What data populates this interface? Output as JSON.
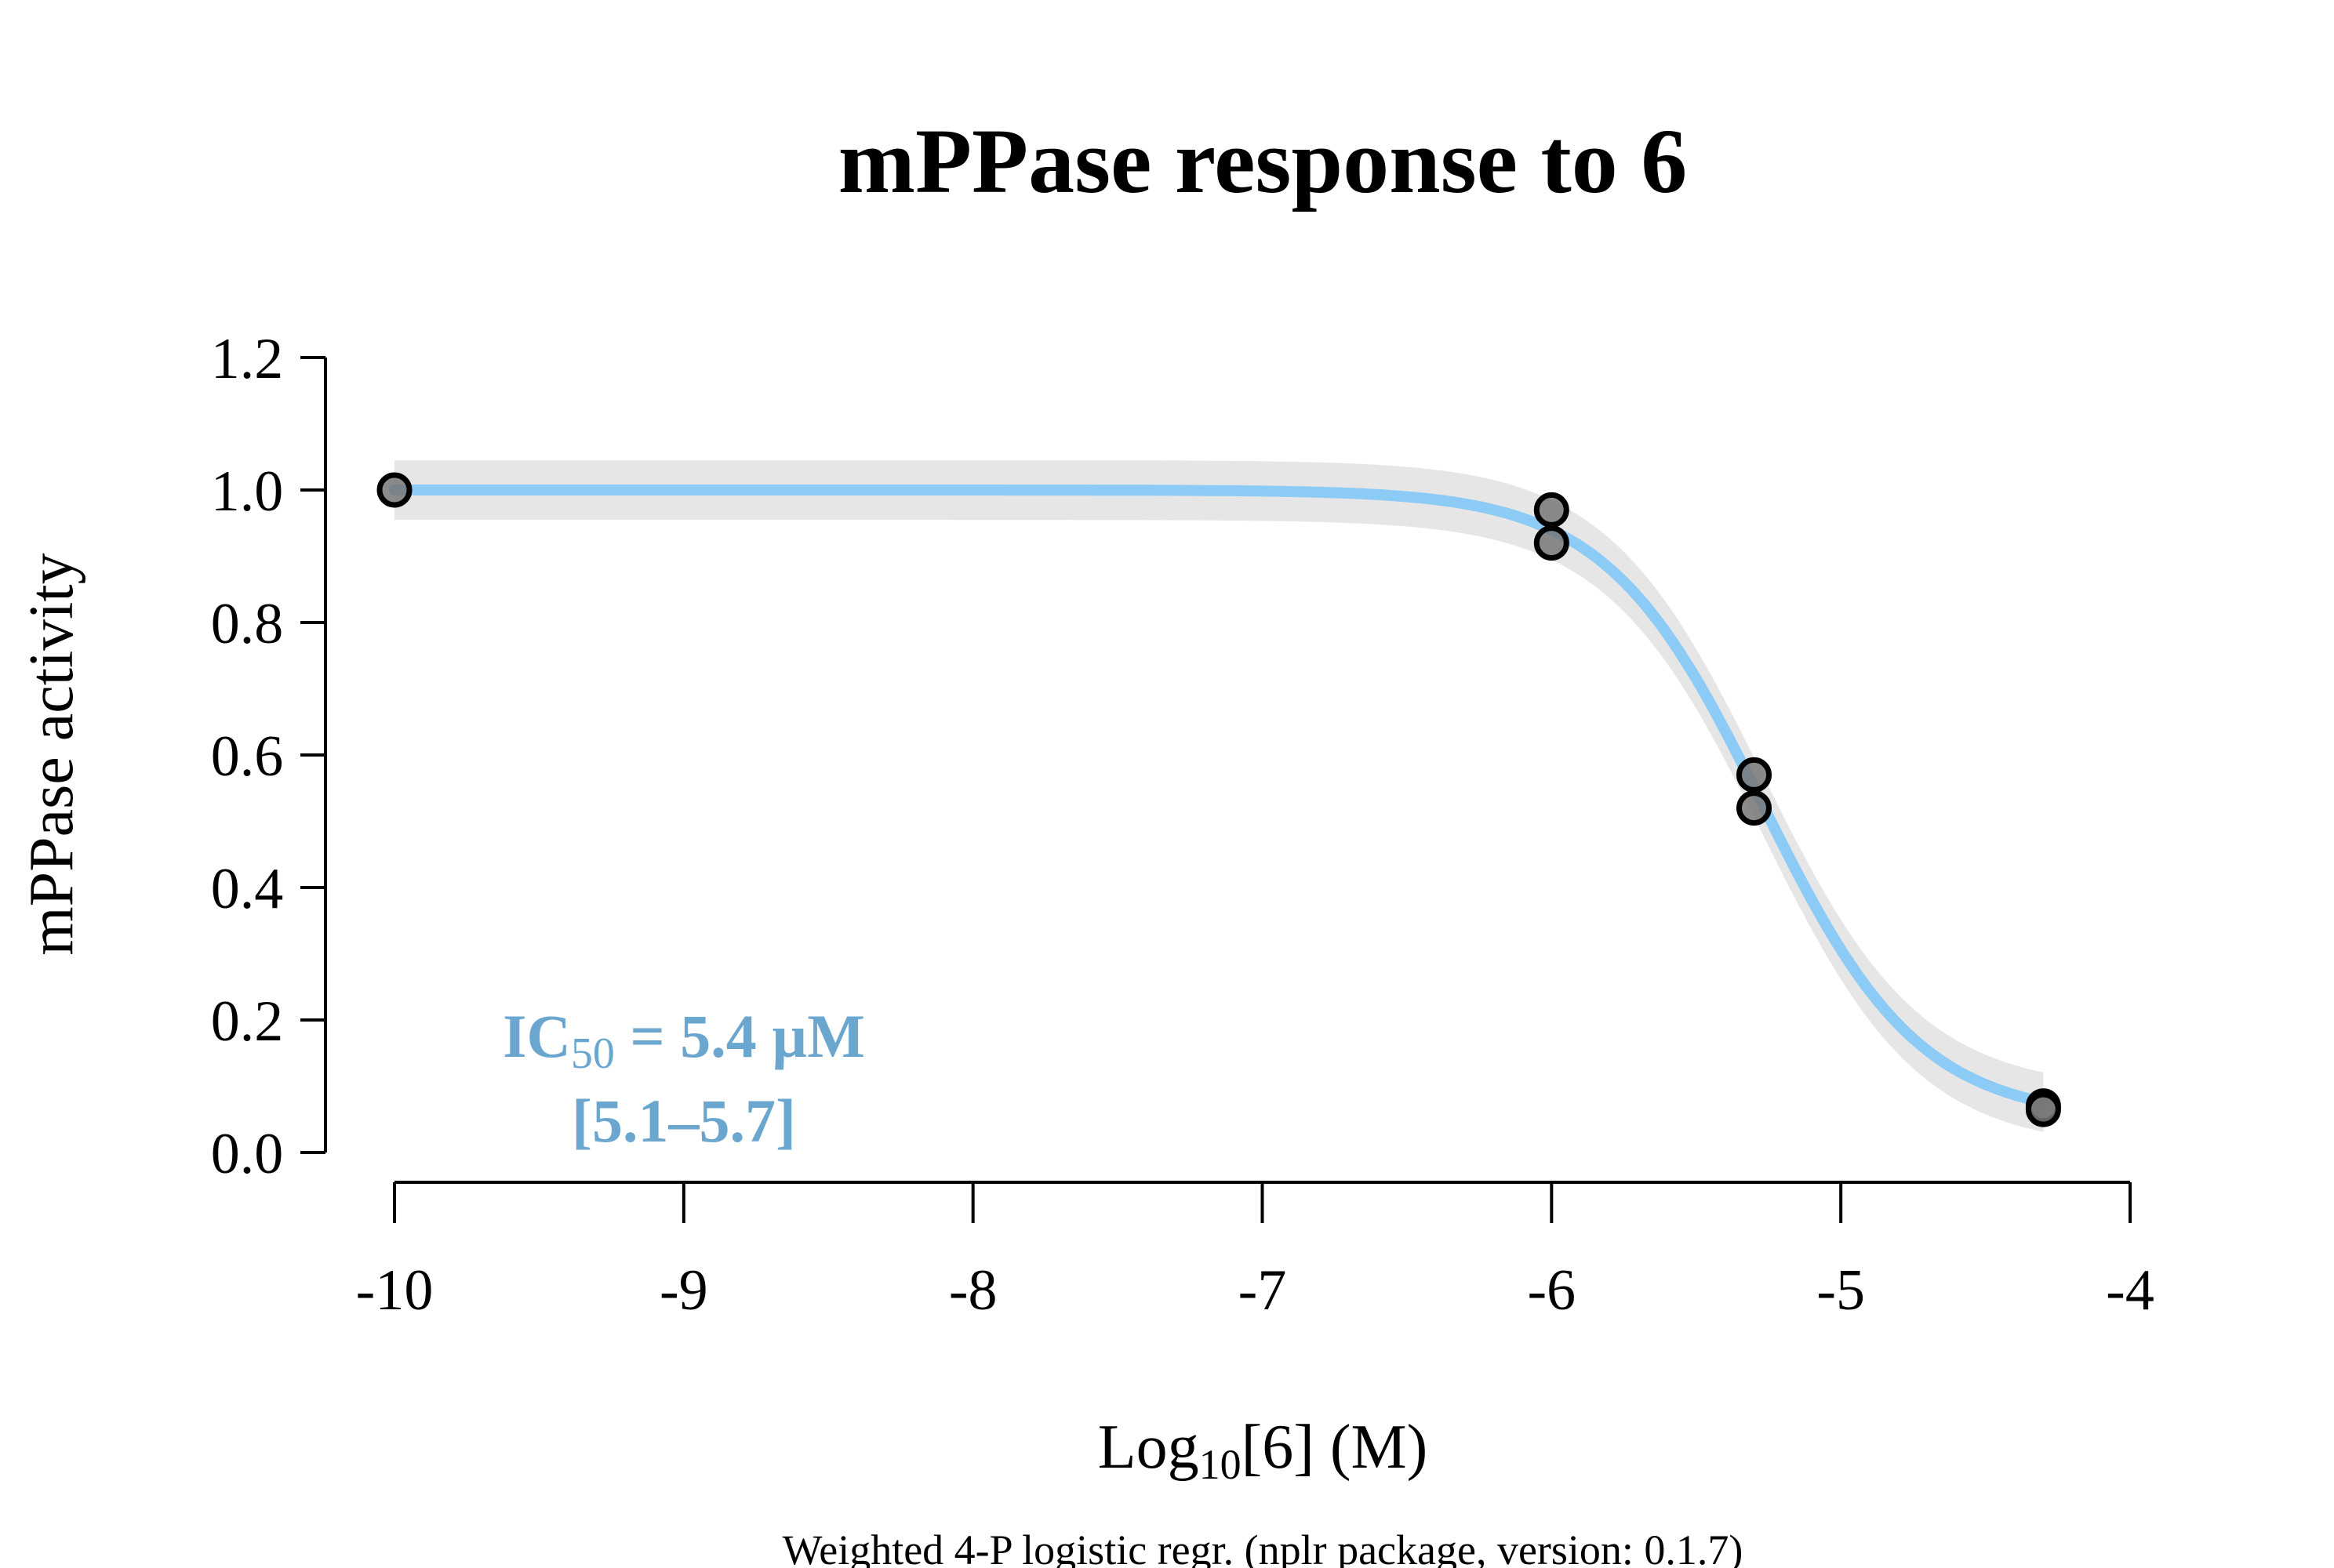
{
  "colors": {
    "curve": "#8CCBF6",
    "ribbon": "#E6E6E6",
    "annotation": "#6BA6CF",
    "point_fill": "#777777",
    "point_stroke": "#000000"
  },
  "chart_data": {
    "type": "scatter",
    "title": "mPPase response to 6",
    "xlabel": "Log10[6] (M)",
    "xlabel_parts": {
      "pre": "Log",
      "sub": "10",
      "post": "[6] (M)"
    },
    "ylabel": "mPPase activity",
    "caption": "Weighted 4-P logistic regr. (nplr package, version: 0.1.7)",
    "xlim": [
      -10,
      -4
    ],
    "ylim": [
      0,
      1.2
    ],
    "x_ticks": [
      "-10",
      "-9",
      "-8",
      "-7",
      "-6",
      "-5",
      "-4"
    ],
    "y_ticks": [
      "0.0",
      "0.2",
      "0.4",
      "0.6",
      "0.8",
      "1.0",
      "1.2"
    ],
    "grid": false,
    "annotation": {
      "ic50_pre": "IC",
      "ic50_sub": "50",
      "ic50_post": " = 5.4 µM",
      "ci": "[5.1–5.7]"
    },
    "points": [
      {
        "x": -10,
        "y": 1.0
      },
      {
        "x": -6,
        "y": 0.97
      },
      {
        "x": -6,
        "y": 0.92
      },
      {
        "x": -5.3,
        "y": 0.57
      },
      {
        "x": -5.3,
        "y": 0.52
      },
      {
        "x": -4.3,
        "y": 0.07
      },
      {
        "x": -4.3,
        "y": 0.065
      }
    ],
    "fit": {
      "model": "4-P logistic",
      "bottom": 0.05,
      "top": 1.0,
      "log_ic50": -5.27,
      "hill": 1.6,
      "x_range": [
        -10,
        -4.3
      ],
      "ribbon_halfwidth": 0.045
    }
  }
}
